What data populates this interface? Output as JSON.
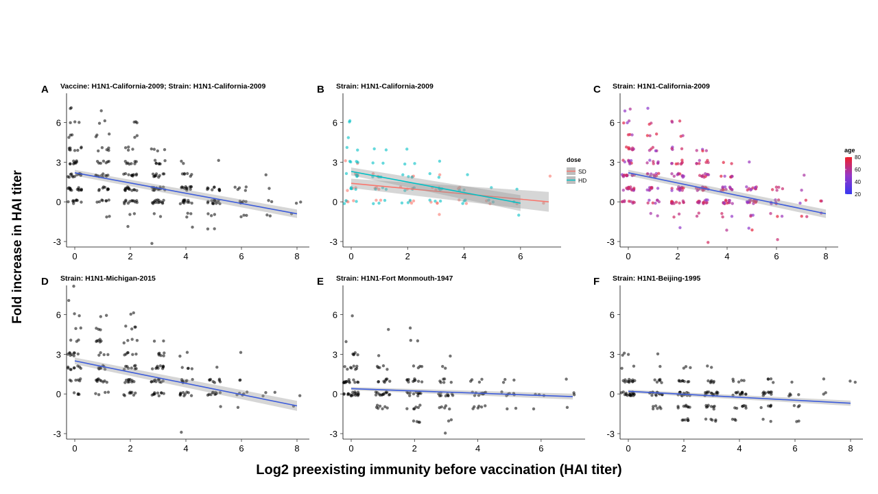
{
  "figure": {
    "ylabel": "Fold increase in HAI titer",
    "xlabel": "Log2 preexisting immunity before vaccination (HAI titer)"
  },
  "chart_data": [
    {
      "panel": "A",
      "type": "scatter",
      "title": "Vaccine: H1N1-California-2009; Strain: H1N1-California-2009",
      "xlim": [
        0,
        8
      ],
      "ylim": [
        -3,
        8
      ],
      "xticks": [
        0,
        2,
        4,
        6,
        8
      ],
      "yticks": [
        -3,
        0,
        3,
        6
      ],
      "grid": false,
      "point_color": "#000000",
      "counts": {
        "0": {
          "-1": 0,
          "0": 9,
          "1": 14,
          "2": 13,
          "3": 9,
          "4": 8,
          "5": 3,
          "6": 3,
          "7": 2
        },
        "1": {
          "-1": 2,
          "0": 7,
          "1": 9,
          "2": 10,
          "3": 7,
          "4": 5,
          "5": 3,
          "6": 2,
          "7": 1
        },
        "2": {
          "-2": 1,
          "-1": 2,
          "0": 12,
          "1": 14,
          "2": 10,
          "3": 8,
          "4": 4,
          "5": 2,
          "6": 3
        },
        "3": {
          "-3": 1,
          "-1": 2,
          "0": 14,
          "1": 16,
          "2": 10,
          "3": 7,
          "4": 4
        },
        "4": {
          "-2": 1,
          "-1": 3,
          "0": 12,
          "1": 12,
          "2": 6,
          "3": 2
        },
        "5": {
          "-2": 2,
          "-1": 3,
          "0": 14,
          "1": 10,
          "3": 1
        },
        "6": {
          "-1": 3,
          "0": 6,
          "1": 5
        },
        "7": {
          "-1": 2,
          "0": 2,
          "1": 1,
          "2": 1
        },
        "8": {
          "-1": 1,
          "0": 2
        }
      },
      "fits": [
        {
          "x": [
            0,
            8
          ],
          "y": [
            2.2,
            -0.9
          ],
          "se": [
            0.22,
            0.32
          ],
          "color": "#3b5bdb"
        }
      ]
    },
    {
      "panel": "B",
      "type": "scatter",
      "title": "Strain: H1N1-California-2009",
      "xlim": [
        0,
        7
      ],
      "ylim": [
        -3,
        8
      ],
      "xticks": [
        0,
        2,
        4,
        6
      ],
      "yticks": [
        -3,
        0,
        3,
        6
      ],
      "grid": false,
      "legend": {
        "title": "dose",
        "position": "right",
        "entries": [
          {
            "label": "SD",
            "color": "#f8766d"
          },
          {
            "label": "HD",
            "color": "#00bfc4"
          }
        ]
      },
      "series": [
        {
          "name": "SD",
          "color": "#f8766d",
          "counts": {
            "0": {
              "0": 3,
              "1": 3,
              "2": 3,
              "3": 2
            },
            "1": {
              "0": 2,
              "1": 3,
              "2": 2
            },
            "2": {
              "0": 3,
              "1": 3,
              "2": 2
            },
            "3": {
              "-1": 1,
              "0": 3,
              "1": 3,
              "2": 1
            },
            "4": {
              "0": 2,
              "1": 2
            },
            "5": {
              "0": 2
            },
            "6": {
              "0": 1
            },
            "7": {
              "0": 1,
              "2": 1
            }
          },
          "fit": {
            "x": [
              0,
              7
            ],
            "y": [
              1.4,
              0.0
            ],
            "se": [
              0.35,
              0.75
            ]
          }
        },
        {
          "name": "HD",
          "color": "#00bfc4",
          "counts": {
            "0": {
              "0": 3,
              "1": 4,
              "2": 5,
              "3": 4,
              "4": 2,
              "5": 1,
              "6": 2
            },
            "1": {
              "0": 3,
              "1": 3,
              "2": 3,
              "3": 2,
              "4": 2
            },
            "2": {
              "0": 3,
              "1": 3,
              "2": 3,
              "3": 2,
              "4": 1
            },
            "3": {
              "0": 3,
              "1": 3,
              "2": 2,
              "3": 1
            },
            "4": {
              "0": 3,
              "1": 2,
              "2": 1
            },
            "5": {
              "0": 2,
              "1": 1
            },
            "6": {
              "-1": 1,
              "0": 1,
              "1": 1
            }
          },
          "fit": {
            "x": [
              0,
              6
            ],
            "y": [
              2.3,
              -0.1
            ],
            "se": [
              0.3,
              0.6
            ]
          }
        }
      ]
    },
    {
      "panel": "C",
      "type": "scatter",
      "title": "Strain: H1N1-California-2009",
      "xlim": [
        0,
        8
      ],
      "ylim": [
        -3,
        8
      ],
      "xticks": [
        0,
        2,
        4,
        6,
        8
      ],
      "yticks": [
        -3,
        0,
        3,
        6
      ],
      "grid": false,
      "colorbar": {
        "title": "age",
        "min": 20,
        "max": 80,
        "ticks": [
          20,
          40,
          60,
          80
        ],
        "low_color": "#3838f0",
        "mid_color": "#9438c8",
        "high_color": "#f0202a"
      },
      "counts": {
        "0": {
          "-1": 0,
          "0": 9,
          "1": 14,
          "2": 13,
          "3": 9,
          "4": 8,
          "5": 3,
          "6": 3,
          "7": 2
        },
        "1": {
          "-1": 2,
          "0": 7,
          "1": 9,
          "2": 10,
          "3": 7,
          "4": 5,
          "5": 3,
          "6": 2,
          "7": 1
        },
        "2": {
          "-2": 1,
          "-1": 2,
          "0": 12,
          "1": 14,
          "2": 10,
          "3": 8,
          "4": 4,
          "5": 2,
          "6": 3
        },
        "3": {
          "-3": 1,
          "-1": 2,
          "0": 14,
          "1": 16,
          "2": 10,
          "3": 7,
          "4": 4
        },
        "4": {
          "-2": 1,
          "-1": 3,
          "0": 12,
          "1": 12,
          "2": 6,
          "3": 2
        },
        "5": {
          "-2": 2,
          "-1": 3,
          "0": 14,
          "1": 10,
          "3": 1
        },
        "6": {
          "-3": 1,
          "-1": 3,
          "0": 6,
          "1": 5
        },
        "7": {
          "-1": 2,
          "0": 2,
          "1": 1,
          "2": 1
        },
        "8": {
          "-1": 1,
          "0": 2
        }
      },
      "fits": [
        {
          "x": [
            0,
            8
          ],
          "y": [
            2.2,
            -0.9
          ],
          "se": [
            0.22,
            0.32
          ],
          "color": "#3b5bdb"
        }
      ]
    },
    {
      "panel": "D",
      "type": "scatter",
      "title": "Strain: H1N1-Michigan-2015",
      "xlim": [
        0,
        8
      ],
      "ylim": [
        -3,
        8
      ],
      "xticks": [
        0,
        2,
        4,
        6,
        8
      ],
      "yticks": [
        -3,
        0,
        3,
        6
      ],
      "grid": false,
      "point_color": "#000000",
      "counts": {
        "0": {
          "0": 4,
          "1": 6,
          "2": 9,
          "3": 9,
          "4": 3,
          "5": 2,
          "6": 2,
          "7": 1,
          "8": 1
        },
        "1": {
          "0": 4,
          "1": 10,
          "2": 8,
          "3": 4,
          "4": 6,
          "5": 3,
          "6": 2
        },
        "2": {
          "0": 8,
          "1": 10,
          "2": 9,
          "3": 6,
          "4": 4,
          "5": 4,
          "6": 2
        },
        "3": {
          "0": 10,
          "1": 12,
          "2": 10,
          "3": 6,
          "4": 2
        },
        "4": {
          "-3": 1,
          "0": 10,
          "1": 9,
          "2": 4,
          "3": 2
        },
        "5": {
          "-1": 1,
          "0": 10,
          "1": 8,
          "2": 1
        },
        "6": {
          "-1": 1,
          "0": 5,
          "1": 2,
          "3": 1
        },
        "7": {
          "0": 3
        },
        "8": {
          "-1": 1,
          "0": 1
        }
      },
      "fits": [
        {
          "x": [
            0,
            8
          ],
          "y": [
            2.5,
            -0.9
          ],
          "se": [
            0.25,
            0.38
          ],
          "color": "#3b5bdb"
        }
      ]
    },
    {
      "panel": "E",
      "type": "scatter",
      "title": "Strain: H1N1-Fort Monmouth-1947",
      "xlim": [
        0,
        7
      ],
      "ylim": [
        -3,
        8
      ],
      "xticks": [
        0,
        2,
        4,
        6
      ],
      "yticks": [
        -3,
        0,
        3,
        6
      ],
      "grid": false,
      "point_color": "#000000",
      "counts": {
        "0": {
          "0": 18,
          "1": 14,
          "2": 8,
          "3": 5,
          "4": 1,
          "6": 1
        },
        "1": {
          "-1": 7,
          "0": 14,
          "1": 8,
          "2": 5,
          "3": 1,
          "5": 1
        },
        "2": {
          "-2": 4,
          "-1": 6,
          "0": 12,
          "1": 10,
          "2": 4,
          "4": 2,
          "5": 1
        },
        "3": {
          "-3": 1,
          "-2": 2,
          "-1": 5,
          "0": 10,
          "1": 6,
          "2": 2,
          "3": 1
        },
        "4": {
          "-1": 6,
          "0": 10,
          "1": 4
        },
        "5": {
          "-1": 2,
          "0": 6,
          "1": 3
        },
        "6": {
          "-1": 1,
          "0": 3
        },
        "7": {
          "-1": 1,
          "0": 2,
          "1": 1
        }
      },
      "fits": [
        {
          "x": [
            0,
            7
          ],
          "y": [
            0.4,
            -0.2
          ],
          "se": [
            0.12,
            0.22
          ],
          "color": "#3b5bdb"
        }
      ]
    },
    {
      "panel": "F",
      "type": "scatter",
      "title": "Strain: H1N1-Beijing-1995",
      "xlim": [
        0,
        8
      ],
      "ylim": [
        -3,
        8
      ],
      "xticks": [
        0,
        2,
        4,
        6,
        8
      ],
      "yticks": [
        -3,
        0,
        3,
        6
      ],
      "grid": false,
      "point_color": "#000000",
      "counts": {
        "0": {
          "0": 18,
          "1": 12,
          "2": 2,
          "3": 3
        },
        "1": {
          "-1": 6,
          "0": 14,
          "1": 6,
          "2": 1,
          "3": 1
        },
        "2": {
          "-2": 6,
          "-1": 8,
          "0": 14,
          "1": 8,
          "2": 3
        },
        "3": {
          "-2": 5,
          "-1": 8,
          "0": 16,
          "1": 6,
          "2": 2
        },
        "4": {
          "-2": 3,
          "-1": 7,
          "0": 12,
          "1": 5
        },
        "5": {
          "-2": 2,
          "-1": 5,
          "0": 10,
          "1": 4
        },
        "6": {
          "-2": 2,
          "-1": 3,
          "0": 4,
          "1": 1
        },
        "7": {
          "0": 2,
          "1": 1
        },
        "8": {
          "1": 2
        }
      },
      "fits": [
        {
          "x": [
            0,
            8
          ],
          "y": [
            0.2,
            -0.7
          ],
          "se": [
            0.12,
            0.2
          ],
          "color": "#3b5bdb"
        }
      ]
    }
  ]
}
